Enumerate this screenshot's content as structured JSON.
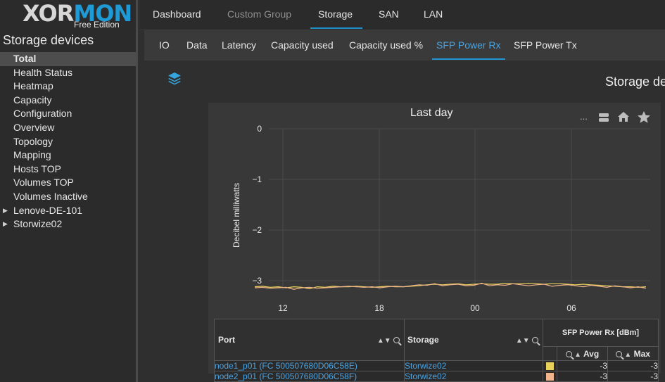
{
  "logo": {
    "text_a": "XOR",
    "text_b": "MON",
    "edition": "Free Edition"
  },
  "sidebar": {
    "title": "Storage devices",
    "items": [
      {
        "label": "Total",
        "active": true
      },
      {
        "label": "Health Status"
      },
      {
        "label": "Heatmap"
      },
      {
        "label": "Capacity"
      },
      {
        "label": "Configuration"
      },
      {
        "label": "Overview"
      },
      {
        "label": "Topology"
      },
      {
        "label": "Mapping"
      },
      {
        "label": "Hosts TOP"
      },
      {
        "label": "Volumes TOP"
      },
      {
        "label": "Volumes Inactive"
      },
      {
        "label": "Lenove-DE-101",
        "expandable": true
      },
      {
        "label": "Storwize02",
        "expandable": true
      }
    ]
  },
  "topnav": {
    "tabs": [
      {
        "label": "Dashboard"
      },
      {
        "label": "Custom Group",
        "dim": true
      },
      {
        "label": "Storage",
        "active": true
      },
      {
        "label": "SAN"
      },
      {
        "label": "LAN"
      }
    ]
  },
  "subnav": {
    "tabs": [
      {
        "label": "IO"
      },
      {
        "label": "Data"
      },
      {
        "label": "Latency"
      },
      {
        "label": "Capacity used"
      },
      {
        "label": "Capacity used %"
      },
      {
        "label": "SFP Power Rx",
        "active": true
      },
      {
        "label": "SFP Power Tx"
      }
    ]
  },
  "page_heading": "Storage de",
  "toolbar": {
    "more_label": "..."
  },
  "chart_data": {
    "type": "line",
    "title": "Last day",
    "ylabel": "Decibel milliwatts",
    "ylim": [
      -3.15,
      0
    ],
    "yticks": [
      "0",
      "−1",
      "−2",
      "−3"
    ],
    "xticks": [
      "12",
      "18",
      "00",
      "06"
    ],
    "grid": true,
    "series": [
      {
        "name": "node1_p01 (FC 500507680D06C58E)",
        "color": "#e8d05a",
        "values": [
          -3.12,
          -3.11,
          -3.13,
          -3.12,
          -3.14,
          -3.12,
          -3.13,
          -3.16,
          -3.12,
          -3.13,
          -3.11,
          -3.12,
          -3.12,
          -3.11,
          -3.12,
          -3.13,
          -3.12,
          -3.11,
          -3.12,
          -3.12,
          -3.11,
          -3.1,
          -3.08,
          -3.07,
          -3.08,
          -3.07,
          -3.06,
          -3.08,
          -3.07,
          -3.06,
          -3.07,
          -3.07,
          -3.05,
          -3.06,
          -3.06,
          -3.05,
          -3.06,
          -3.07,
          -3.06,
          -3.06,
          -3.07,
          -3.08,
          -3.07,
          -3.08,
          -3.09,
          -3.1,
          -3.11,
          -3.12,
          -3.12,
          -3.13,
          -3.12
        ]
      },
      {
        "name": "node2_p01 (FC 500507680D06C58F)",
        "color": "#f2b48c",
        "values": [
          -3.14,
          -3.13,
          -3.15,
          -3.14,
          -3.13,
          -3.17,
          -3.14,
          -3.13,
          -3.15,
          -3.14,
          -3.13,
          -3.12,
          -3.11,
          -3.12,
          -3.13,
          -3.12,
          -3.14,
          -3.12,
          -3.11,
          -3.12,
          -3.1,
          -3.08,
          -3.09,
          -3.06,
          -3.1,
          -3.08,
          -3.07,
          -3.1,
          -3.09,
          -3.05,
          -3.1,
          -3.08,
          -3.09,
          -3.06,
          -3.08,
          -3.1,
          -3.08,
          -3.07,
          -3.11,
          -3.09,
          -3.08,
          -3.1,
          -3.12,
          -3.09,
          -3.11,
          -3.13,
          -3.1,
          -3.12,
          -3.14,
          -3.12,
          -3.15
        ]
      }
    ]
  },
  "table": {
    "headers": {
      "port": "Port",
      "storage": "Storage",
      "metric": "SFP Power Rx [dBm]",
      "avg": "Avg",
      "max": "Max"
    },
    "rows": [
      {
        "port": "node1_p01 (FC 500507680D06C58E)",
        "storage": "Storwize02",
        "color": "#e8d05a",
        "avg": "-3",
        "max": "-3"
      },
      {
        "port": "node2_p01 (FC 500507680D06C58F)",
        "storage": "Storwize02",
        "color": "#f2b48c",
        "avg": "-3",
        "max": "-3"
      }
    ]
  }
}
